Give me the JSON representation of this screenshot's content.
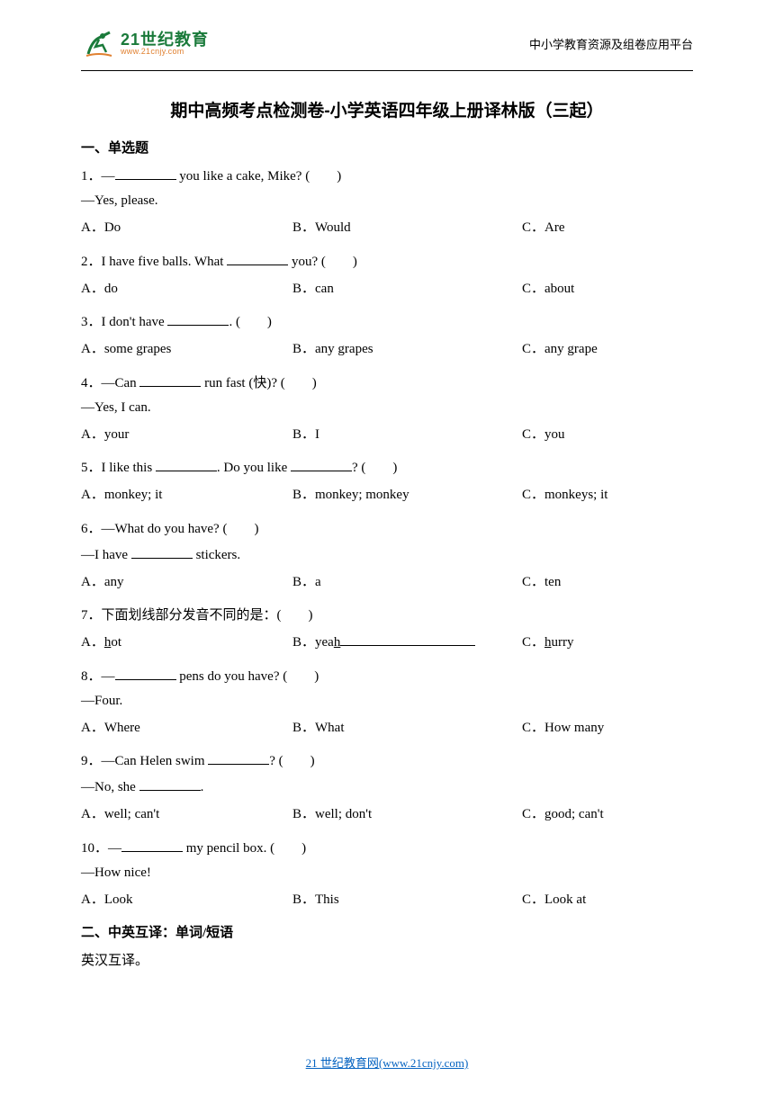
{
  "header": {
    "logo_cn": "21世纪教育",
    "logo_en": "www.21cnjy.com",
    "right_text": "中小学教育资源及组卷应用平台"
  },
  "title": "期中高频考点检测卷-小学英语四年级上册译林版（三起）",
  "section1": "一、单选题",
  "section2": "二、中英互译：单词/短语",
  "section2_sub": "英汉互译。",
  "questions": [
    {
      "num": "1",
      "text_before": "．—",
      "text_after": " you like a cake, Mike? (　　)",
      "line2": "—Yes, please.",
      "opts": [
        "A．Do",
        "B．Would",
        "C．Are"
      ]
    },
    {
      "num": "2",
      "text_before": "．I have five balls. What ",
      "text_after": " you? (　　)",
      "opts": [
        "A．do",
        "B．can",
        "C．about"
      ]
    },
    {
      "num": "3",
      "text_before": "．I don't have ",
      "text_after": ". (　　)",
      "opts": [
        "A．some grapes",
        "B．any grapes",
        "C．any grape"
      ]
    },
    {
      "num": "4",
      "text_before": "．—Can ",
      "text_after": " run fast (快)? (　　)",
      "line2": "—Yes, I can.",
      "opts": [
        "A．your",
        "B．I",
        "C．you"
      ]
    },
    {
      "num": "5",
      "text_before": "．I like this ",
      "text_mid": ". Do you like ",
      "text_after": "? (　　)",
      "double_blank": true,
      "opts": [
        "A．monkey; it",
        "B．monkey; monkey",
        "C．monkeys; it"
      ]
    },
    {
      "num": "6",
      "text_before": "．—What do you have? (　　)",
      "no_blank_line1": true,
      "line2_before": "—I have ",
      "line2_after": " stickers.",
      "line2_blank": true,
      "opts": [
        "A．any",
        "B．a",
        "C．ten"
      ]
    },
    {
      "num": "7",
      "text_before": "．下面划线部分发音不同的是：(　　)",
      "no_blank_line1": true,
      "opts_underline": true,
      "opts": [
        "A．",
        "B．",
        "C．"
      ],
      "opt_a_pre": "",
      "opt_a_u": "h",
      "opt_a_post": "ot",
      "opt_b_pre": "yea",
      "opt_b_u": "h",
      "opt_b_post": "",
      "opt_b_blank": true,
      "opt_c_pre": "",
      "opt_c_u": "h",
      "opt_c_post": "urry"
    },
    {
      "num": "8",
      "text_before": "．—",
      "text_after": " pens do you have? (　　)",
      "line2": "—Four.",
      "opts": [
        "A．Where",
        "B．What",
        "C．How many"
      ]
    },
    {
      "num": "9",
      "text_before": "．—Can Helen swim ",
      "text_after": "? (　　)",
      "line2_before": "—No, she ",
      "line2_after": ".",
      "line2_blank": true,
      "opts": [
        "A．well; can't",
        "B．well; don't",
        "C．good; can't"
      ]
    },
    {
      "num": "10",
      "text_before": "．—",
      "text_after": " my pencil box. (　　)",
      "line2": "—How nice!",
      "opts": [
        "A．Look",
        "B．This",
        "C．Look at"
      ]
    }
  ],
  "footer": {
    "text": "21 世纪教育网(www.21cnjy.com)"
  }
}
